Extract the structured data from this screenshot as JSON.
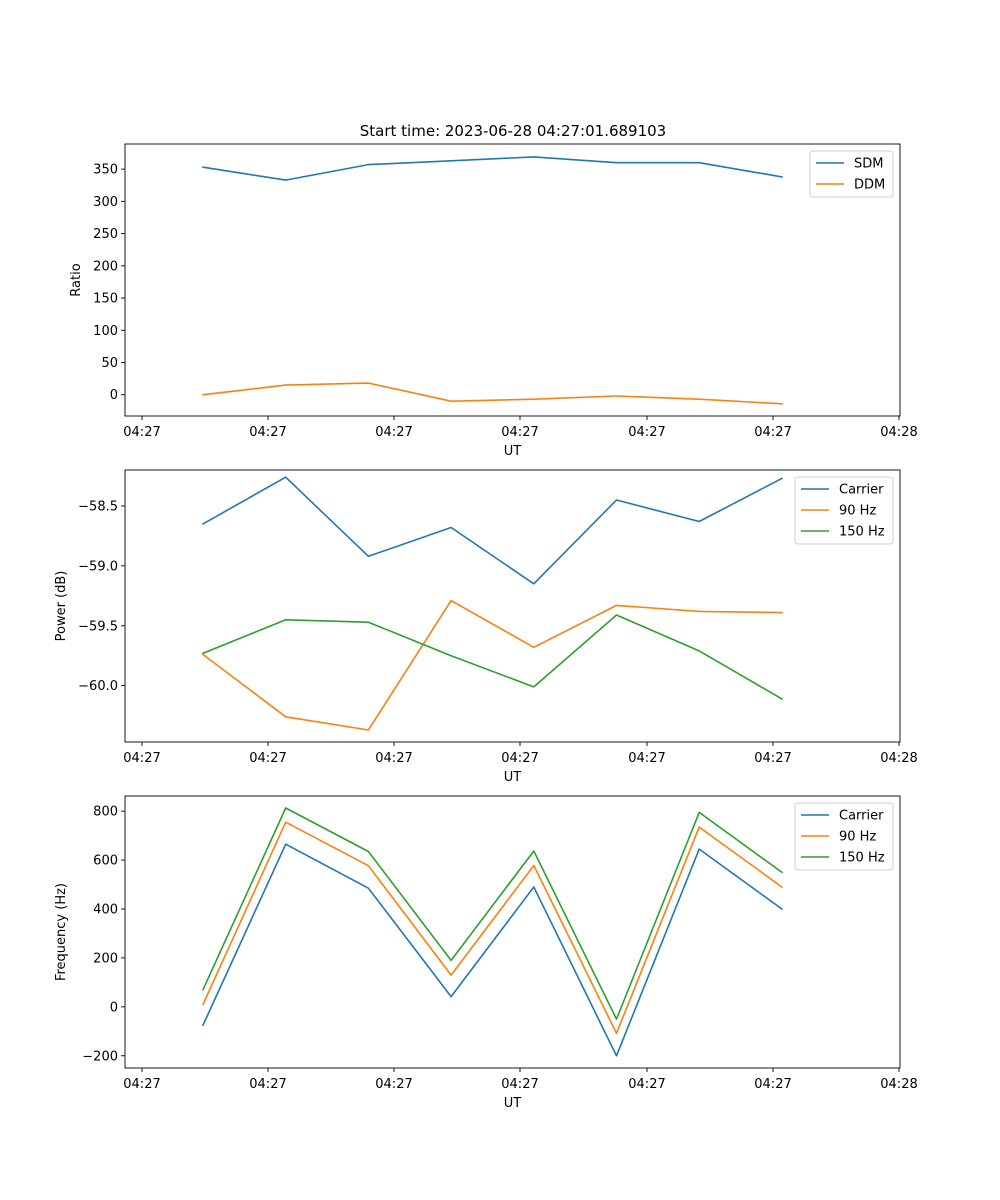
{
  "title": "Start time: 2023-06-28 04:27:01.689103",
  "colors": {
    "blue": "#1f77b4",
    "orange": "#ff7f0e",
    "green": "#2ca02c"
  },
  "chart_data": [
    {
      "type": "line",
      "title": "Start time: 2023-06-28 04:27:01.689103",
      "xlabel": "UT",
      "ylabel": "Ratio",
      "x_tick_labels": [
        "04:27",
        "04:27",
        "04:27",
        "04:27",
        "04:27",
        "04:27",
        "04:28"
      ],
      "y_ticks": [
        0,
        50,
        100,
        150,
        200,
        250,
        300,
        350
      ],
      "y_tick_labels": [
        "0",
        "50",
        "100",
        "150",
        "200",
        "250",
        "300",
        "350"
      ],
      "ylim": [
        -33,
        389
      ],
      "legend_position": "top-right",
      "series": [
        {
          "name": "SDM",
          "color": "#1f77b4",
          "values": [
            353,
            333,
            357,
            363,
            369,
            360,
            360,
            338
          ]
        },
        {
          "name": "DDM",
          "color": "#ff7f0e",
          "values": [
            0,
            15,
            18,
            -10,
            -7,
            -2,
            -7,
            -14
          ]
        }
      ]
    },
    {
      "type": "line",
      "xlabel": "UT",
      "ylabel": "Power (dB)",
      "x_tick_labels": [
        "04:27",
        "04:27",
        "04:27",
        "04:27",
        "04:27",
        "04:27",
        "04:28"
      ],
      "y_ticks": [
        -60.0,
        -59.5,
        -59.0,
        -58.5
      ],
      "y_tick_labels": [
        "−60.0",
        "−59.5",
        "−59.0",
        "−58.5"
      ],
      "ylim": [
        -60.47,
        -58.2
      ],
      "legend_position": "top-right",
      "series": [
        {
          "name": "Carrier",
          "color": "#1f77b4",
          "values": [
            -58.65,
            -58.26,
            -58.92,
            -58.68,
            -59.15,
            -58.45,
            -58.63,
            -58.27
          ]
        },
        {
          "name": "90 Hz",
          "color": "#ff7f0e",
          "values": [
            -59.74,
            -60.26,
            -60.37,
            -59.29,
            -59.68,
            -59.33,
            -59.38,
            -59.39
          ]
        },
        {
          "name": "150 Hz",
          "color": "#2ca02c",
          "values": [
            -59.73,
            -59.45,
            -59.47,
            -59.75,
            -60.01,
            -59.41,
            -59.71,
            -60.11
          ]
        }
      ]
    },
    {
      "type": "line",
      "xlabel": "UT",
      "ylabel": "Frequency (Hz)",
      "x_tick_labels": [
        "04:27",
        "04:27",
        "04:27",
        "04:27",
        "04:27",
        "04:27",
        "04:28"
      ],
      "y_ticks": [
        -200,
        0,
        200,
        400,
        600,
        800
      ],
      "y_tick_labels": [
        "−200",
        "0",
        "200",
        "400",
        "600",
        "800"
      ],
      "ylim": [
        -250,
        862
      ],
      "legend_position": "top-right",
      "series": [
        {
          "name": "Carrier",
          "color": "#1f77b4",
          "values": [
            -75,
            665,
            485,
            42,
            490,
            -200,
            645,
            400
          ]
        },
        {
          "name": "90 Hz",
          "color": "#ff7f0e",
          "values": [
            10,
            755,
            577,
            130,
            578,
            -108,
            735,
            490
          ]
        },
        {
          "name": "150 Hz",
          "color": "#2ca02c",
          "values": [
            70,
            813,
            635,
            190,
            637,
            -50,
            795,
            550
          ]
        }
      ]
    }
  ]
}
